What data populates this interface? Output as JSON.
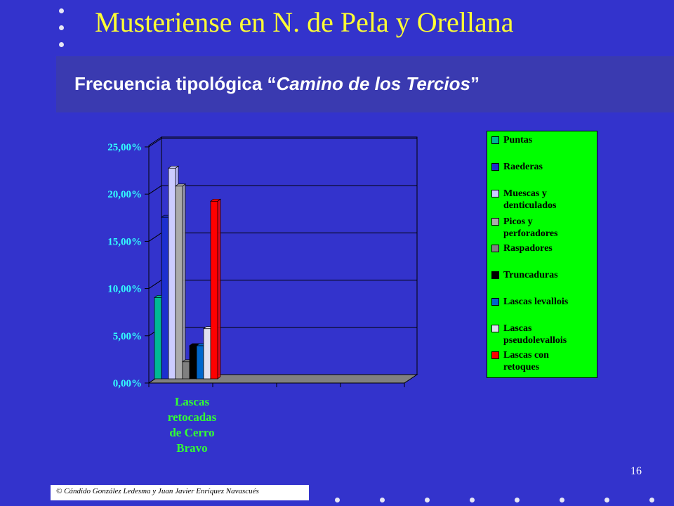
{
  "slide": {
    "title": "Musteriense en N. de Pela y Orellana",
    "subtitle_prefix": "Frecuencia tipológica “",
    "subtitle_italic": "Camino de los Tercios",
    "subtitle_suffix": "”",
    "page_number": "16",
    "footer": "© Cándido González Ledesma y Juan Javier Enríquez Navascués"
  },
  "chart_data": {
    "type": "bar",
    "categories": [
      "Lascas retocadas de Cerro Bravo"
    ],
    "category_label_lines": [
      "Lascas",
      "retocadas",
      "de Cerro",
      "Bravo"
    ],
    "y_ticks": [
      "0,00%",
      "5,00%",
      "10,00%",
      "15,00%",
      "20,00%",
      "25,00%"
    ],
    "ylim": [
      0,
      25
    ],
    "series": [
      {
        "name": "Puntas",
        "values": [
          8.6
        ],
        "color": "#00b894"
      },
      {
        "name": "Raederas",
        "values": [
          17.1
        ],
        "color": "#1c2fcf"
      },
      {
        "name": "Muescas y denticulados",
        "values": [
          22.3
        ],
        "color": "#ccccff"
      },
      {
        "name": "Picos y perforadores",
        "values": [
          20.4
        ],
        "color": "#aaaaaa"
      },
      {
        "name": "Raspadores",
        "values": [
          1.8
        ],
        "color": "#808080"
      },
      {
        "name": "Truncaduras",
        "values": [
          3.5
        ],
        "color": "#000000"
      },
      {
        "name": "Lascas levallois",
        "values": [
          3.5
        ],
        "color": "#0066cc"
      },
      {
        "name": "Lascas pseudolevallois",
        "values": [
          5.3
        ],
        "color": "#e0e0f0"
      },
      {
        "name": "Lascas con retoques",
        "values": [
          18.8
        ],
        "color": "#ff0000"
      }
    ],
    "legend_labels": [
      [
        "Puntas"
      ],
      [
        "Raederas"
      ],
      [
        "Muescas y",
        "denticulados"
      ],
      [
        "Picos y",
        "perforadores"
      ],
      [
        "Raspadores"
      ],
      [
        "Truncaduras"
      ],
      [
        "Lascas levallois"
      ],
      [
        "Lascas",
        "pseudolevallois"
      ],
      [
        "Lascas con",
        "retoques"
      ]
    ],
    "legend_position": "right",
    "grid": true,
    "plot_background": "#3333cc",
    "wall_color": "#3333cc",
    "floor_color": "#808080"
  }
}
